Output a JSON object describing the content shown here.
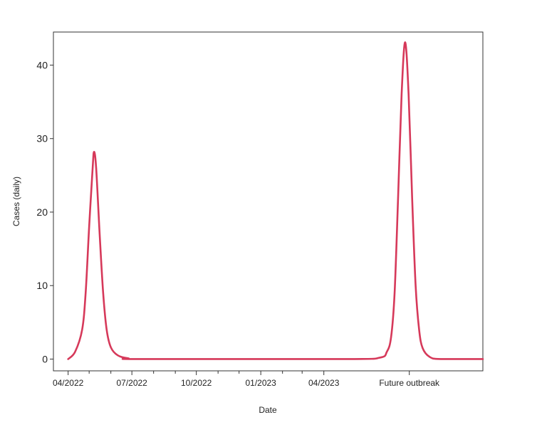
{
  "chart_data": {
    "type": "line",
    "xlabel": "Date",
    "ylabel": "Cases (daily)",
    "ylim": [
      -1.6,
      44.5
    ],
    "yticks": [
      0,
      10,
      20,
      30,
      40
    ],
    "xlim": [
      "2022-03-11",
      "2023-11-14"
    ],
    "xticks": [
      {
        "label": "04/2022",
        "x": "2022-04-01"
      },
      {
        "label": "07/2022",
        "x": "2022-07-01"
      },
      {
        "label": "10/2022",
        "x": "2022-10-01"
      },
      {
        "label": "01/2023",
        "x": "2023-01-01"
      },
      {
        "label": "04/2023",
        "x": "2023-04-01"
      },
      {
        "label": "Future outbreak",
        "x": "2023-08-01"
      }
    ],
    "minor_ticks": [
      "2022-05-01",
      "2022-06-01",
      "2022-08-01",
      "2022-09-01",
      "2022-11-01",
      "2022-12-01",
      "2023-02-01",
      "2023-03-01"
    ],
    "grid": false,
    "legend": "none",
    "series": [
      {
        "color": "#d6395a",
        "points": [
          {
            "x": "2022-04-01",
            "y": 0
          },
          {
            "x": "2022-04-11",
            "y": 1.0
          },
          {
            "x": "2022-04-21",
            "y": 4.0
          },
          {
            "x": "2022-04-26",
            "y": 9.0
          },
          {
            "x": "2022-05-01",
            "y": 18.0
          },
          {
            "x": "2022-05-06",
            "y": 26.0
          },
          {
            "x": "2022-05-08",
            "y": 28.2
          },
          {
            "x": "2022-05-11",
            "y": 26.0
          },
          {
            "x": "2022-05-16",
            "y": 17.0
          },
          {
            "x": "2022-05-21",
            "y": 9.0
          },
          {
            "x": "2022-05-26",
            "y": 4.0
          },
          {
            "x": "2022-06-01",
            "y": 1.6
          },
          {
            "x": "2022-06-11",
            "y": 0.5
          },
          {
            "x": "2022-06-26",
            "y": 0.1
          },
          {
            "x": "2022-07-15",
            "y": 0
          },
          {
            "x": "2023-05-01",
            "y": 0
          },
          {
            "x": "2023-06-20",
            "y": 0.2
          },
          {
            "x": "2023-06-30",
            "y": 1.0
          },
          {
            "x": "2023-07-06",
            "y": 3.0
          },
          {
            "x": "2023-07-11",
            "y": 9.0
          },
          {
            "x": "2023-07-16",
            "y": 22.0
          },
          {
            "x": "2023-07-21",
            "y": 36.0
          },
          {
            "x": "2023-07-26",
            "y": 43.1
          },
          {
            "x": "2023-07-31",
            "y": 36.0
          },
          {
            "x": "2023-08-05",
            "y": 22.0
          },
          {
            "x": "2023-08-10",
            "y": 10.0
          },
          {
            "x": "2023-08-15",
            "y": 4.0
          },
          {
            "x": "2023-08-20",
            "y": 1.5
          },
          {
            "x": "2023-08-30",
            "y": 0.3
          },
          {
            "x": "2023-09-15",
            "y": 0
          },
          {
            "x": "2023-11-14",
            "y": 0
          }
        ]
      }
    ]
  }
}
